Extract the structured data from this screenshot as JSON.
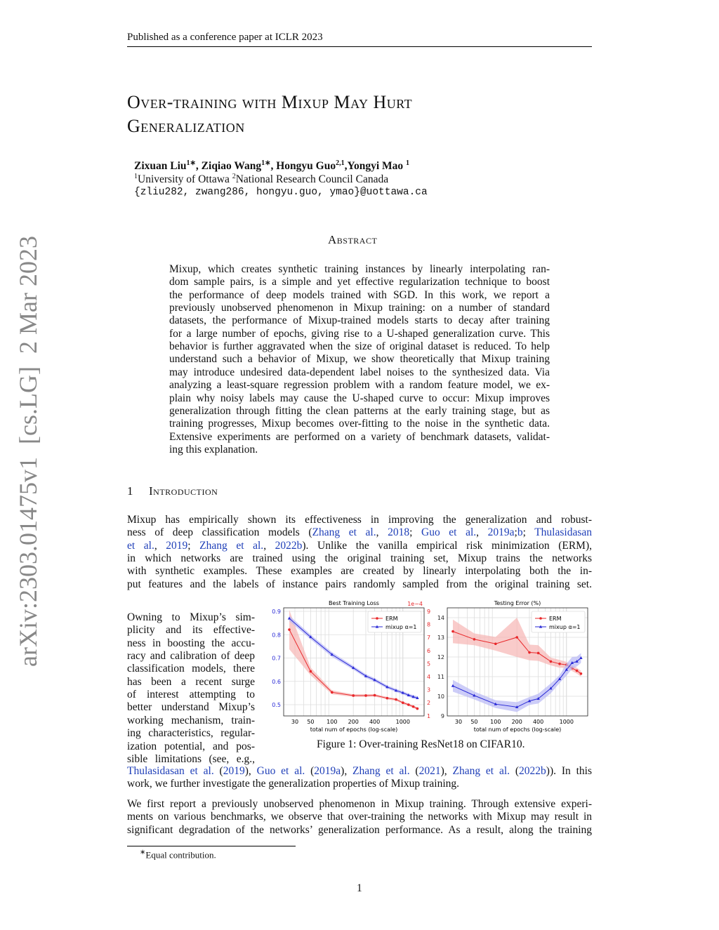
{
  "header": "Published as a conference paper at ICLR 2023",
  "side_stamp": "arXiv:2303.01475v1  [cs.LG]  2 Mar 2023",
  "title": [
    "Over-training with Mixup May Hurt",
    "Generalization"
  ],
  "authors": [
    "Zixuan Liu",
    {
      "sup": "1∗"
    },
    ", Ziqiao Wang",
    {
      "sup": "1∗"
    },
    ", Hongyu Guo",
    {
      "sup": "2,1"
    },
    ",Yongyi Mao ",
    {
      "sup": "1"
    }
  ],
  "affiliations": [
    {
      "sup": "1"
    },
    "University of Ottawa ",
    {
      "sup": "2"
    },
    "National Research Council Canada"
  ],
  "emails": "{zliu282, zwang286, hongyu.guo, ymao}@uottawa.ca",
  "abstract": {
    "heading": "Abstract",
    "lines": [
      "Mixup, which creates synthetic training instances by linearly interpolating ran-",
      "dom sample pairs, is a simple and yet effective regularization technique to boost",
      "the performance of deep models trained with SGD. In this work, we report a",
      "previously unobserved phenomenon in Mixup training: on a number of standard",
      "datasets, the performance of Mixup-trained models starts to decay after training",
      "for a large number of epochs, giving rise to a U-shaped generalization curve. This",
      "behavior is further aggravated when the size of original dataset is reduced. To help",
      "understand such a behavior of Mixup, we show theoretically that Mixup training",
      "may introduce undesired data-dependent label noises to the synthesized data. Via",
      "analyzing a least-square regression problem with a random feature model, we ex-",
      "plain why noisy labels may cause the U-shaped curve to occur: Mixup improves",
      "generalization through fitting the clean patterns at the early training stage, but as",
      "training progresses, Mixup becomes over-fitting to the noise in the synthetic data.",
      "Extensive experiments are performed on a variety of benchmark datasets, validat-",
      "ing this explanation."
    ]
  },
  "intro": {
    "number": "1",
    "heading": "Introduction",
    "para1": [
      "Mixup has empirically shown its effectiveness in improving the generalization and robust-",
      [
        "ness of deep classification models (",
        {
          "link": "Zhang et al."
        },
        ", ",
        {
          "link": "2018"
        },
        "; ",
        {
          "link": "Guo et al."
        },
        ", ",
        {
          "link": "2019a"
        },
        ";",
        {
          "link": "b"
        },
        "; ",
        {
          "link": "Thulasidasan"
        }
      ],
      [
        {
          "link": "et al."
        },
        ", ",
        {
          "link": "2019"
        },
        "; ",
        {
          "link": "Zhang et al."
        },
        ", ",
        {
          "link": "2022b"
        },
        ").  Unlike the vanilla empirical risk minimization (ERM),"
      ],
      "in which networks are trained using the original training set, Mixup trains the networks",
      "with synthetic examples.  These examples are created by linearly interpolating both the in-",
      "put features and the labels of instance pairs randomly sampled from the original training set."
    ],
    "wrapped": [
      "Owning to Mixup’s sim-",
      "plicity and its effective-",
      "ness in boosting the accu-",
      "racy and calibration of deep",
      "classification models, there",
      "has been a recent surge",
      "of interest attempting to",
      "better understand Mixup’s",
      "working mechanism, train-",
      "ing characteristics, regular-",
      "ization potential, and pos-",
      "sible limitations (see, e.g.,"
    ],
    "para1_end": [
      [
        {
          "link": "Thulasidasan et al."
        },
        " (",
        {
          "link": "2019"
        },
        "), ",
        {
          "link": "Guo et al."
        },
        " (",
        {
          "link": "2019a"
        },
        "), ",
        {
          "link": "Zhang et al."
        },
        " (",
        {
          "link": "2021"
        },
        "), ",
        {
          "link": "Zhang et al."
        },
        " (",
        {
          "link": "2022b"
        },
        ")).  In this"
      ],
      "work, we further investigate the generalization properties of Mixup training."
    ],
    "para2": [
      "We first report a previously unobserved phenomenon in Mixup training. Through extensive experi-",
      "ments on various benchmarks, we observe that over-training the networks with Mixup may result in",
      "significant degradation of the networks’ generalization performance. As a result, along the training"
    ]
  },
  "figure": {
    "caption": "Figure 1: Over-training ResNet18 on CIFAR10.",
    "colors": {
      "erm": "#e8272a",
      "mixup": "#2a2ad6",
      "erm_band": "#f7b5b3",
      "mixup_band": "#b8b8f5"
    }
  },
  "chart_data": [
    {
      "type": "line",
      "title": "Best Training Loss",
      "xlabel": "total num of epochs (log-scale)",
      "xscale": "log",
      "xticks": [
        30,
        50,
        100,
        200,
        400,
        1000
      ],
      "x": [
        25,
        50,
        100,
        200,
        300,
        400,
        600,
        800,
        1000,
        1200,
        1400,
        1600
      ],
      "grid": true,
      "legend": "top-right",
      "left_axis": {
        "ylim": [
          0.45,
          0.9
        ],
        "ticks": [
          0.5,
          0.6,
          0.7,
          0.8,
          0.9
        ]
      },
      "right_axis": {
        "ylim": [
          1,
          9
        ],
        "ticks": [
          1,
          2,
          3,
          4,
          5,
          6,
          7,
          8,
          9
        ],
        "multiplier": "1e−4"
      },
      "series": [
        {
          "name": "ERM",
          "axis": "right",
          "marker": "circle",
          "values": [
            7.6,
            4.4,
            2.8,
            2.55,
            2.55,
            2.57,
            2.35,
            2.25,
            2.0,
            1.85,
            1.7,
            1.55
          ],
          "std": [
            1.5,
            0.3,
            0.15,
            0.1,
            0.1,
            0.1,
            0.1,
            0.1,
            0.1,
            0.1,
            0.1,
            0.1
          ]
        },
        {
          "name": "mixup α=1",
          "axis": "left",
          "marker": "triangle",
          "values": [
            0.87,
            0.79,
            0.715,
            0.658,
            0.623,
            0.606,
            0.576,
            0.561,
            0.551,
            0.541,
            0.534,
            0.529
          ],
          "std": [
            0.012,
            0.01,
            0.01,
            0.008,
            0.008,
            0.008,
            0.007,
            0.007,
            0.007,
            0.007,
            0.007,
            0.007
          ]
        }
      ]
    },
    {
      "type": "line",
      "title": "Testing Error (%)",
      "xlabel": "total num of epochs (log-scale)",
      "xscale": "log",
      "xticks": [
        30,
        50,
        100,
        200,
        400,
        1000
      ],
      "x": [
        25,
        50,
        100,
        200,
        300,
        400,
        600,
        800,
        1000,
        1200,
        1400,
        1600
      ],
      "grid": true,
      "legend": "top-right",
      "ylim": [
        9,
        14.4
      ],
      "yticks": [
        9,
        10,
        11,
        12,
        13,
        14
      ],
      "series": [
        {
          "name": "ERM",
          "marker": "circle",
          "values": [
            13.3,
            12.9,
            12.67,
            13.0,
            12.23,
            12.2,
            11.77,
            11.65,
            11.6,
            11.43,
            11.3,
            11.15
          ],
          "std": [
            0.6,
            0.3,
            0.35,
            1.0,
            0.4,
            0.4,
            0.2,
            0.2,
            0.15,
            0.15,
            0.15,
            0.15
          ]
        },
        {
          "name": "mixup α=1",
          "marker": "triangle",
          "values": [
            10.53,
            10.04,
            9.6,
            9.45,
            9.76,
            9.88,
            10.4,
            10.88,
            11.35,
            11.7,
            11.77,
            11.95
          ],
          "std": [
            0.3,
            0.2,
            0.2,
            0.25,
            0.2,
            0.25,
            0.25,
            0.2,
            0.3,
            0.3,
            0.25,
            0.25
          ]
        }
      ]
    }
  ],
  "footnote": {
    "mark": "∗",
    "text": "Equal contribution."
  },
  "page_number": "1"
}
